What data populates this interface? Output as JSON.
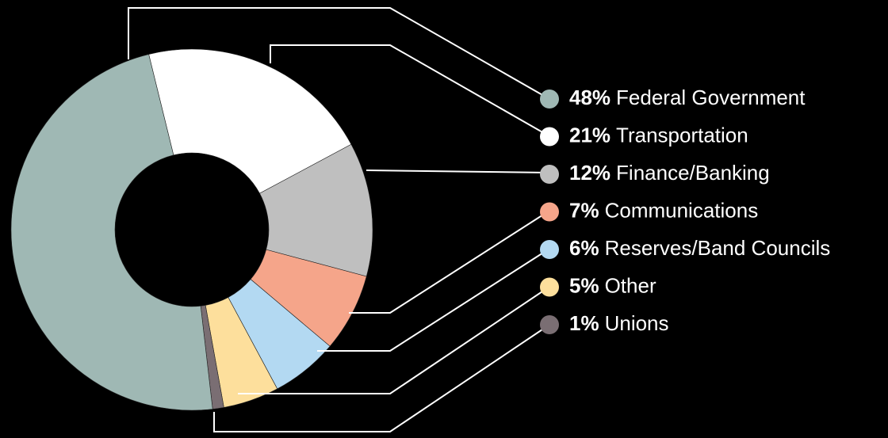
{
  "chart_data": {
    "type": "pie",
    "categories": [
      "Federal Government",
      "Transportation",
      "Finance/Banking",
      "Communications",
      "Reserves/Band Councils",
      "Other",
      "Unions"
    ],
    "values": [
      48,
      21,
      12,
      7,
      6,
      5,
      1
    ],
    "value_labels": [
      "48%",
      "21%",
      "12%",
      "7%",
      "6%",
      "5%",
      "1%"
    ],
    "colors": [
      "#9fb8b4",
      "#ffffff",
      "#bfbfbf",
      "#f5a58a",
      "#b3d9f2",
      "#fddf9c",
      "#7a6e73"
    ],
    "donut": true
  }
}
